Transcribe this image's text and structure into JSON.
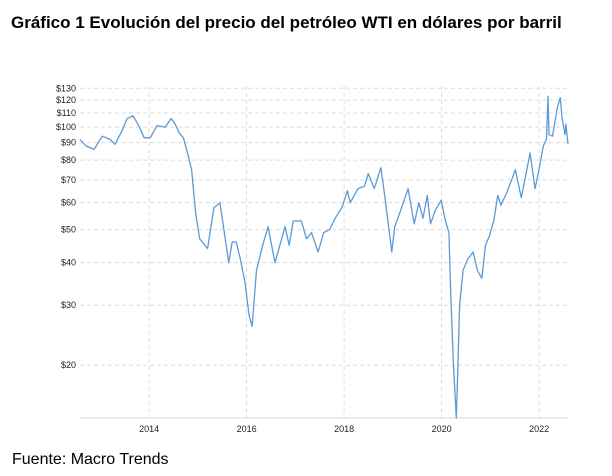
{
  "title": "Gráfico 1 Evolución del precio del petróleo WTI en dólares por barril",
  "source": "Fuente: Macro Trends",
  "colors": {
    "line": "#5b9bd5",
    "grid": "#dcdcdc",
    "axis": "#d9d9d9"
  },
  "chart_data": {
    "type": "line",
    "title": "Gráfico 1 Evolución del precio del petróleo WTI en dólares por barril",
    "xlabel": "",
    "ylabel": "",
    "y_scale": "log",
    "ylim": [
      14,
      132
    ],
    "xlim": [
      "2012-08-01",
      "2022-08-05"
    ],
    "grid": true,
    "y_ticks": [
      20,
      30,
      40,
      50,
      60,
      70,
      80,
      90,
      100,
      110,
      120,
      130
    ],
    "y_tick_labels": [
      "$20",
      "$30",
      "$40",
      "$50",
      "$60",
      "$70",
      "$80",
      "$90",
      "$100",
      "$110",
      "$120",
      "$130"
    ],
    "x_ticks": [
      "2014-01-01",
      "2016-01-01",
      "2018-01-01",
      "2020-01-01",
      "2022-01-01"
    ],
    "x_tick_labels": [
      "2014",
      "2016",
      "2018",
      "2020",
      "2022"
    ],
    "series": [
      {
        "name": "",
        "points": [
          [
            "2012-08-01",
            92
          ],
          [
            "2012-09-15",
            88
          ],
          [
            "2012-11-15",
            86
          ],
          [
            "2013-01-15",
            94
          ],
          [
            "2013-03-15",
            92
          ],
          [
            "2013-04-20",
            89
          ],
          [
            "2013-06-15",
            98
          ],
          [
            "2013-07-20",
            106
          ],
          [
            "2013-09-01",
            108
          ],
          [
            "2013-10-15",
            101
          ],
          [
            "2013-11-25",
            93
          ],
          [
            "2014-01-10",
            93
          ],
          [
            "2014-03-01",
            101
          ],
          [
            "2014-05-01",
            100
          ],
          [
            "2014-06-15",
            106
          ],
          [
            "2014-07-15",
            102
          ],
          [
            "2014-08-15",
            96
          ],
          [
            "2014-09-15",
            93
          ],
          [
            "2014-10-15",
            84
          ],
          [
            "2014-11-15",
            75
          ],
          [
            "2014-12-15",
            56
          ],
          [
            "2015-01-15",
            47
          ],
          [
            "2015-03-15",
            44
          ],
          [
            "2015-05-01",
            58
          ],
          [
            "2015-06-15",
            60
          ],
          [
            "2015-07-15",
            50
          ],
          [
            "2015-08-20",
            40
          ],
          [
            "2015-09-15",
            46
          ],
          [
            "2015-10-15",
            46
          ],
          [
            "2015-11-15",
            41
          ],
          [
            "2015-12-20",
            35
          ],
          [
            "2016-01-20",
            28
          ],
          [
            "2016-02-11",
            26
          ],
          [
            "2016-03-15",
            38
          ],
          [
            "2016-05-01",
            45
          ],
          [
            "2016-06-10",
            51
          ],
          [
            "2016-08-01",
            40
          ],
          [
            "2016-10-15",
            51
          ],
          [
            "2016-11-15",
            45
          ],
          [
            "2016-12-15",
            53
          ],
          [
            "2017-02-15",
            53
          ],
          [
            "2017-03-25",
            47
          ],
          [
            "2017-05-01",
            49
          ],
          [
            "2017-06-20",
            43
          ],
          [
            "2017-08-01",
            49
          ],
          [
            "2017-09-15",
            50
          ],
          [
            "2017-10-25",
            54
          ],
          [
            "2017-12-15",
            58
          ],
          [
            "2018-01-25",
            65
          ],
          [
            "2018-02-15",
            60
          ],
          [
            "2018-04-15",
            66
          ],
          [
            "2018-06-01",
            67
          ],
          [
            "2018-07-01",
            73
          ],
          [
            "2018-08-15",
            66
          ],
          [
            "2018-10-03",
            76
          ],
          [
            "2018-11-01",
            63
          ],
          [
            "2018-12-24",
            43
          ],
          [
            "2019-01-15",
            51
          ],
          [
            "2019-02-15",
            55
          ],
          [
            "2019-04-25",
            66
          ],
          [
            "2019-06-10",
            52
          ],
          [
            "2019-07-15",
            60
          ],
          [
            "2019-08-15",
            54
          ],
          [
            "2019-09-16",
            63
          ],
          [
            "2019-10-10",
            52
          ],
          [
            "2019-11-15",
            57
          ],
          [
            "2019-12-30",
            61
          ],
          [
            "2020-01-25",
            54
          ],
          [
            "2020-02-25",
            49
          ],
          [
            "2020-03-10",
            32
          ],
          [
            "2020-03-30",
            20
          ],
          [
            "2020-04-20",
            14
          ],
          [
            "2020-05-01",
            19
          ],
          [
            "2020-05-15",
            30
          ],
          [
            "2020-06-10",
            38
          ],
          [
            "2020-07-15",
            41
          ],
          [
            "2020-08-25",
            43
          ],
          [
            "2020-09-25",
            38
          ],
          [
            "2020-10-28",
            36
          ],
          [
            "2020-11-25",
            45
          ],
          [
            "2020-12-25",
            48
          ],
          [
            "2021-01-25",
            53
          ],
          [
            "2021-02-25",
            63
          ],
          [
            "2021-03-20",
            59
          ],
          [
            "2021-05-01",
            64
          ],
          [
            "2021-06-15",
            71
          ],
          [
            "2021-07-06",
            75
          ],
          [
            "2021-08-20",
            62
          ],
          [
            "2021-09-15",
            70
          ],
          [
            "2021-10-25",
            84
          ],
          [
            "2021-12-01",
            66
          ],
          [
            "2021-12-31",
            75
          ],
          [
            "2022-02-01",
            88
          ],
          [
            "2022-02-25",
            92
          ],
          [
            "2022-03-08",
            123
          ],
          [
            "2022-03-16",
            95
          ],
          [
            "2022-04-11",
            94
          ],
          [
            "2022-05-17",
            114
          ],
          [
            "2022-06-08",
            122
          ],
          [
            "2022-06-22",
            106
          ],
          [
            "2022-07-14",
            95
          ],
          [
            "2022-07-20",
            102
          ],
          [
            "2022-08-05",
            89
          ]
        ]
      }
    ]
  }
}
